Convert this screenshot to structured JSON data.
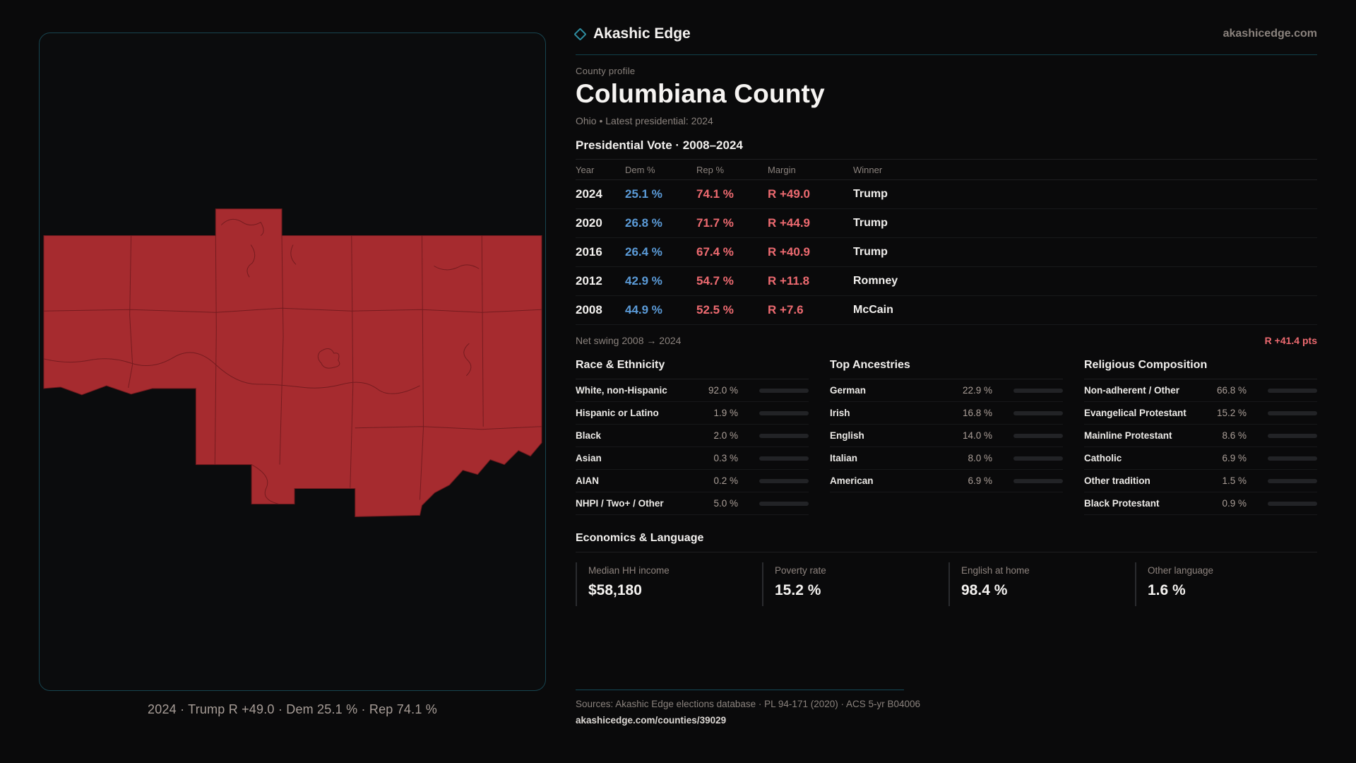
{
  "brand": {
    "name": "Akashic Edge",
    "domain": "akashicedge.com"
  },
  "colors": {
    "accent": "#2f8ea1",
    "dem": "#5b9bd8",
    "rep": "#ed6a70"
  },
  "profile": {
    "eyebrow": "County profile",
    "title": "Columbiana County",
    "subtitle": "Ohio • Latest presidential: 2024"
  },
  "vote": {
    "heading": "Presidential Vote · 2008–2024",
    "columns": [
      "Year",
      "Dem %",
      "Rep %",
      "Margin",
      "Winner"
    ],
    "rows": [
      {
        "year": "2024",
        "dem": "25.1 %",
        "rep": "74.1 %",
        "margin": "R +49.0",
        "winner": "Trump"
      },
      {
        "year": "2020",
        "dem": "26.8 %",
        "rep": "71.7 %",
        "margin": "R +44.9",
        "winner": "Trump"
      },
      {
        "year": "2016",
        "dem": "26.4 %",
        "rep": "67.4 %",
        "margin": "R +40.9",
        "winner": "Trump"
      },
      {
        "year": "2012",
        "dem": "42.9 %",
        "rep": "54.7 %",
        "margin": "R +11.8",
        "winner": "Romney"
      },
      {
        "year": "2008",
        "dem": "44.9 %",
        "rep": "52.5 %",
        "margin": "R +7.6",
        "winner": "McCain"
      }
    ],
    "net_swing_label": "Net swing 2008 → 2024",
    "net_swing_value": "R +41.4 pts"
  },
  "stats_columns": [
    {
      "heading": "Race & Ethnicity",
      "rows": [
        {
          "label": "White, non-Hispanic",
          "value": "92.0 %",
          "pct": 92.0
        },
        {
          "label": "Hispanic or Latino",
          "value": "1.9 %",
          "pct": 1.9
        },
        {
          "label": "Black",
          "value": "2.0 %",
          "pct": 2.0
        },
        {
          "label": "Asian",
          "value": "0.3 %",
          "pct": 0.3
        },
        {
          "label": "AIAN",
          "value": "0.2 %",
          "pct": 0.2
        },
        {
          "label": "NHPI / Two+ / Other",
          "value": "5.0 %",
          "pct": 5.0
        }
      ]
    },
    {
      "heading": "Top Ancestries",
      "rows": [
        {
          "label": "German",
          "value": "22.9 %",
          "pct": 22.9
        },
        {
          "label": "Irish",
          "value": "16.8 %",
          "pct": 16.8
        },
        {
          "label": "English",
          "value": "14.0 %",
          "pct": 14.0
        },
        {
          "label": "Italian",
          "value": "8.0 %",
          "pct": 8.0
        },
        {
          "label": "American",
          "value": "6.9 %",
          "pct": 6.9
        }
      ]
    },
    {
      "heading": "Religious Composition",
      "rows": [
        {
          "label": "Non-adherent / Other",
          "value": "66.8 %",
          "pct": 66.8
        },
        {
          "label": "Evangelical Protestant",
          "value": "15.2 %",
          "pct": 15.2
        },
        {
          "label": "Mainline Protestant",
          "value": "8.6 %",
          "pct": 8.6
        },
        {
          "label": "Catholic",
          "value": "6.9 %",
          "pct": 6.9
        },
        {
          "label": "Other tradition",
          "value": "1.5 %",
          "pct": 1.5
        },
        {
          "label": "Black Protestant",
          "value": "0.9 %",
          "pct": 0.9
        }
      ]
    }
  ],
  "economics": {
    "heading": "Economics & Language",
    "cards": [
      {
        "label": "Median HH income",
        "value": "$58,180"
      },
      {
        "label": "Poverty rate",
        "value": "15.2 %"
      },
      {
        "label": "English at home",
        "value": "98.4 %"
      },
      {
        "label": "Other language",
        "value": "1.6 %"
      }
    ]
  },
  "map": {
    "caption": "2024 · Trump R +49.0 · Dem 25.1 % · Rep 74.1 %",
    "fill_color": "#a62b2f",
    "line_color": "#6d191d"
  },
  "footer": {
    "sources": "Sources: Akashic Edge elections database · PL 94-171 (2020) · ACS 5-yr B04006",
    "permalink": "akashicedge.com/counties/39029"
  }
}
